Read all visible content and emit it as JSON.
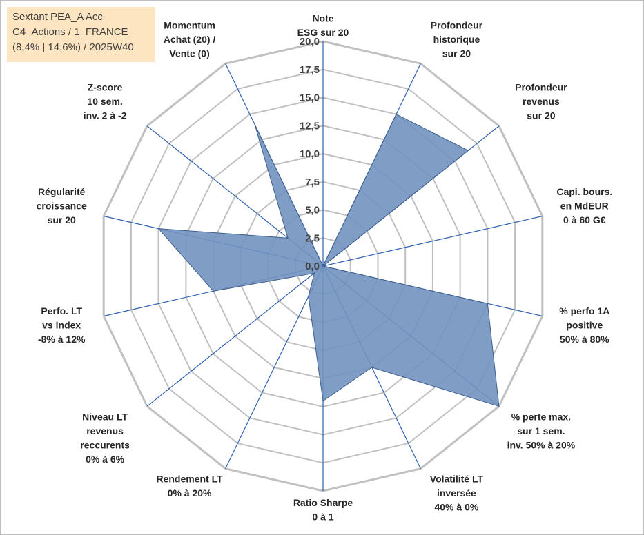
{
  "header": {
    "fund_name": "Sextant PEA_A Acc",
    "category": "C4_Actions / 1_FRANCE",
    "stats": "(8,4% | 14,6%) / 2025W40"
  },
  "colors": {
    "fill": "#7192bf",
    "stroke": "#3d5f8f",
    "spoke": "#2f5fb0",
    "ring": "#c0c0c0",
    "label_box": "#fce5c0"
  },
  "chart_data": {
    "type": "radar",
    "title": "",
    "rmin": 0,
    "rmax": 20,
    "ticks": [
      "0,0",
      "2,5",
      "5,0",
      "7,5",
      "10,0",
      "12,5",
      "15,0",
      "17,5",
      "20,0"
    ],
    "tick_values": [
      0,
      2.5,
      5,
      7.5,
      10,
      12.5,
      15,
      17.5,
      20
    ],
    "axes": [
      {
        "lines": [
          "Note",
          "ESG sur 20"
        ],
        "value": 0
      },
      {
        "lines": [
          "Profondeur",
          "historique",
          "sur 20"
        ],
        "value": 15
      },
      {
        "lines": [
          "Profondeur",
          "revenus",
          "sur 20"
        ],
        "value": 16.5
      },
      {
        "lines": [
          "Capi. bours.",
          "en MdEUR",
          "0 à 60 G€"
        ],
        "value": 0
      },
      {
        "lines": [
          "% perfo 1A",
          "positive",
          "50% à 80%"
        ],
        "value": 15
      },
      {
        "lines": [
          "% perte max.",
          "sur 1 sem.",
          "inv. 50% à 20%"
        ],
        "value": 20
      },
      {
        "lines": [
          "Volatilité LT",
          "inversée",
          "40% à 0%"
        ],
        "value": 10
      },
      {
        "lines": [
          "Ratio Sharpe",
          "0 à 1"
        ],
        "value": 12
      },
      {
        "lines": [
          "Rendement LT",
          "0% à 20%"
        ],
        "value": 3
      },
      {
        "lines": [
          "Niveau LT",
          "revenus",
          "reccurents",
          "0% à 6%"
        ],
        "value": 1
      },
      {
        "lines": [
          "Perfo. LT",
          "vs index",
          "-8% à 12%"
        ],
        "value": 10
      },
      {
        "lines": [
          "Régularité",
          "croissance",
          "sur 20"
        ],
        "value": 15
      },
      {
        "lines": [
          "Z-score",
          "10 sem.",
          "inv. 2 à -2"
        ],
        "value": 4
      },
      {
        "lines": [
          "Momentum",
          "Achat (20) /",
          "Vente (0)"
        ],
        "value": 14
      }
    ]
  }
}
